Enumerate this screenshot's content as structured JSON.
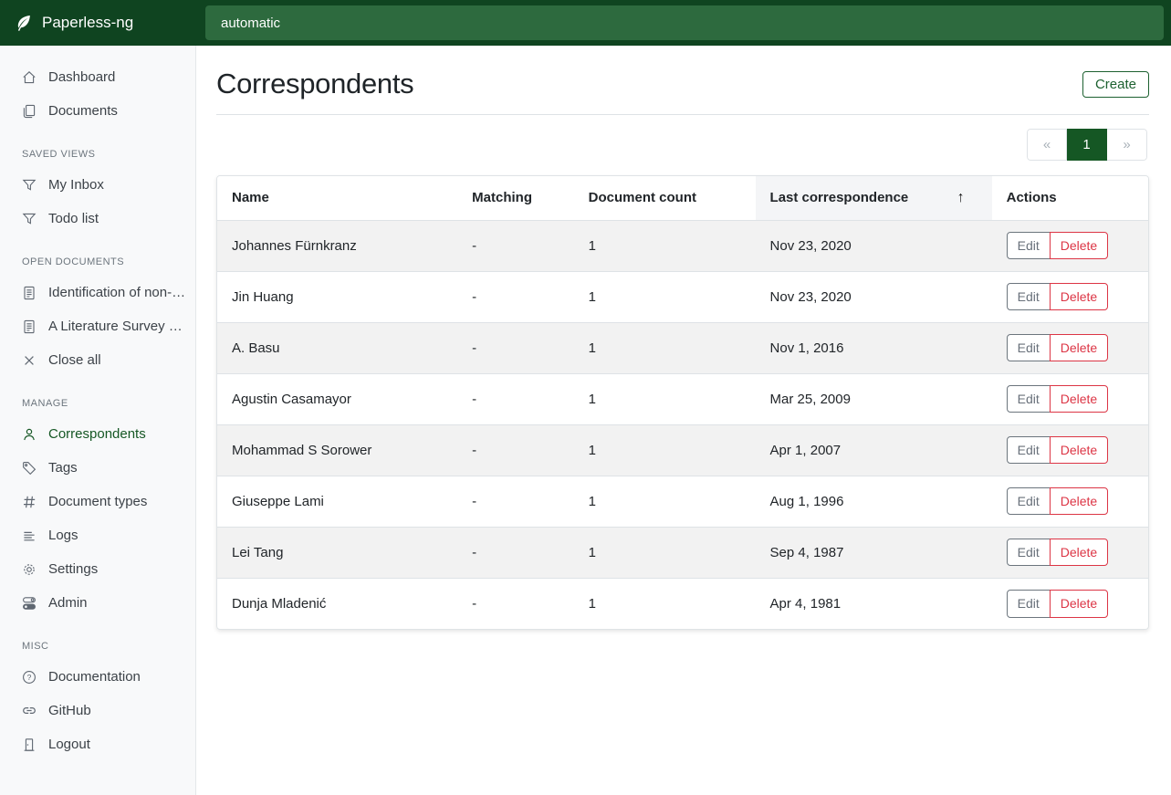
{
  "navbar": {
    "brand": "Paperless-ng",
    "brand_icon": "feather",
    "search": {
      "value": "automatic"
    }
  },
  "sidebar": {
    "sections": [
      {
        "header": null,
        "items": [
          {
            "icon": "home",
            "label": "Dashboard"
          },
          {
            "icon": "files",
            "label": "Documents"
          }
        ]
      },
      {
        "header": "SAVED VIEWS",
        "items": [
          {
            "icon": "funnel",
            "label": "My Inbox"
          },
          {
            "icon": "funnel",
            "label": "Todo list"
          }
        ]
      },
      {
        "header": "OPEN DOCUMENTS",
        "items": [
          {
            "icon": "file-text",
            "label": "Identification of non-fu..."
          },
          {
            "icon": "file-text",
            "label": "A Literature Survey on ..."
          },
          {
            "icon": "close",
            "label": "Close all"
          }
        ]
      },
      {
        "header": "MANAGE",
        "items": [
          {
            "icon": "person",
            "label": "Correspondents",
            "active": true
          },
          {
            "icon": "tag",
            "label": "Tags"
          },
          {
            "icon": "hash",
            "label": "Document types"
          },
          {
            "icon": "list-lines",
            "label": "Logs"
          },
          {
            "icon": "gear",
            "label": "Settings"
          },
          {
            "icon": "toggles",
            "label": "Admin"
          }
        ]
      },
      {
        "header": "MISC",
        "items": [
          {
            "icon": "question-circle",
            "label": "Documentation"
          },
          {
            "icon": "link",
            "label": "GitHub"
          },
          {
            "icon": "door",
            "label": "Logout"
          }
        ]
      }
    ]
  },
  "main": {
    "title": "Correspondents",
    "create_button": "Create",
    "pagination": {
      "prev": "«",
      "pages": [
        "1"
      ],
      "active_page": "1",
      "next": "»"
    },
    "table": {
      "columns": [
        {
          "label": "Name",
          "sortable": true,
          "sorted": false
        },
        {
          "label": "Matching",
          "sortable": true,
          "sorted": false
        },
        {
          "label": "Document count",
          "sortable": true,
          "sorted": false
        },
        {
          "label": "Last correspondence",
          "sortable": true,
          "sorted": true,
          "sort_direction": "ascending",
          "sort_icon": "arrow-up"
        },
        {
          "label": "Actions",
          "sortable": false,
          "sorted": false
        }
      ],
      "rows": [
        {
          "name": "Johannes Fürnkranz",
          "matching": "-",
          "document_count": "1",
          "last_correspondence": "Nov 23, 2020"
        },
        {
          "name": "Jin Huang",
          "matching": "-",
          "document_count": "1",
          "last_correspondence": "Nov 23, 2020"
        },
        {
          "name": "A. Basu",
          "matching": "-",
          "document_count": "1",
          "last_correspondence": "Nov 1, 2016"
        },
        {
          "name": "Agustin Casamayor",
          "matching": "-",
          "document_count": "1",
          "last_correspondence": "Mar 25, 2009"
        },
        {
          "name": "Mohammad S Sorower",
          "matching": "-",
          "document_count": "1",
          "last_correspondence": "Apr 1, 2007"
        },
        {
          "name": "Giuseppe Lami",
          "matching": "-",
          "document_count": "1",
          "last_correspondence": "Aug 1, 1996"
        },
        {
          "name": "Lei Tang",
          "matching": "-",
          "document_count": "1",
          "last_correspondence": "Sep 4, 1987"
        },
        {
          "name": "Dunja Mladenić",
          "matching": "-",
          "document_count": "1",
          "last_correspondence": "Apr 4, 1981"
        }
      ],
      "row_actions": {
        "edit": "Edit",
        "delete": "Delete"
      }
    }
  },
  "colors": {
    "navbar_bg": "#0f4420",
    "navbar_search_bg": "#2d6a3e",
    "accent_green": "#155724",
    "danger_red": "#dc3545",
    "secondary_gray": "#6c757d",
    "sorted_col_bg": "#f4f5f7",
    "row_stripe": "#f2f2f2",
    "border_color": "#dee2e6"
  }
}
